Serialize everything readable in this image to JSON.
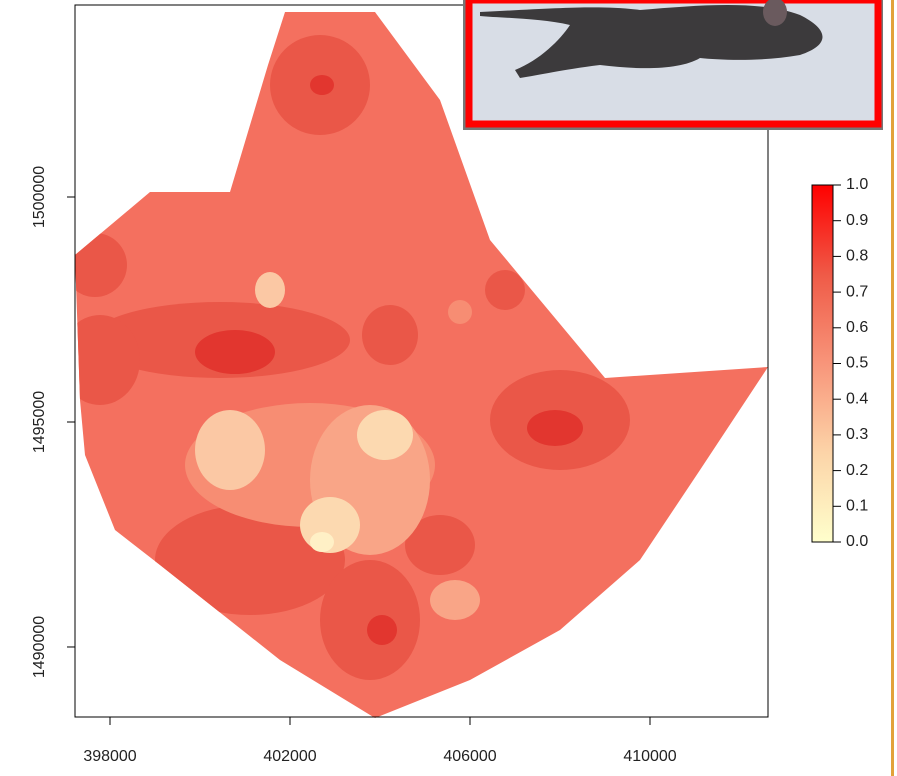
{
  "chart_data": {
    "type": "raster-map",
    "xlim": [
      397222,
      412622
    ],
    "ylim": [
      1488444,
      1504267
    ],
    "xticks": [
      398000,
      402000,
      406000,
      410000
    ],
    "yticks": [
      1490000,
      1495000,
      1500000
    ],
    "colorbar": {
      "lim": [
        0,
        1
      ],
      "ticks": [
        {
          "value": 0,
          "label": "0.0"
        },
        0.1,
        0.2,
        0.3,
        0.4,
        0.5,
        0.6,
        0.7,
        0.8,
        0.9,
        {
          "value": 1,
          "label": "1.0"
        }
      ],
      "colors": [
        "#ffffcc",
        "#fcd4a8",
        "#f8957a",
        "#ef5a47",
        "#ff0000"
      ]
    }
  }
}
